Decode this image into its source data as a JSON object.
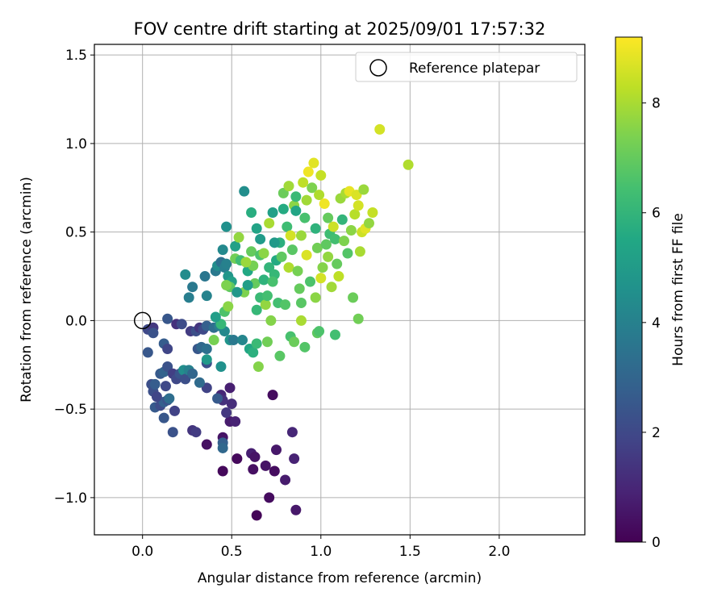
{
  "chart_data": {
    "type": "scatter",
    "title": "FOV centre drift starting at 2025/09/01 17:57:32",
    "xlabel": "Angular distance from reference (arcmin)",
    "ylabel": "Rotation from reference (arcmin)",
    "xlim": [
      -0.27,
      2.48
    ],
    "ylim": [
      -1.21,
      1.56
    ],
    "xticks": [
      "0.0",
      "0.5",
      "1.0",
      "1.5",
      "2.0"
    ],
    "yticks": [
      "−1.0",
      "−0.5",
      "0.0",
      "0.5",
      "1.0",
      "1.5"
    ],
    "grid": true,
    "legend": {
      "position": "top-right",
      "label": "Reference platepar"
    },
    "reference_point": {
      "x": 0.0,
      "y": 0.0
    },
    "colorbar": {
      "label": "Hours from first FF file",
      "colormap": "viridis",
      "range": [
        0,
        9.2
      ],
      "ticks": [
        "0",
        "2",
        "4",
        "6",
        "8"
      ]
    },
    "points": [
      {
        "x": 0.64,
        "y": -1.1,
        "t": 0.1
      },
      {
        "x": 0.71,
        "y": -1.0,
        "t": 0.3
      },
      {
        "x": 0.86,
        "y": -1.07,
        "t": 0.6
      },
      {
        "x": 0.45,
        "y": -0.85,
        "t": 0.2
      },
      {
        "x": 0.62,
        "y": -0.84,
        "t": 0.4
      },
      {
        "x": 0.69,
        "y": -0.82,
        "t": 0.5
      },
      {
        "x": 0.74,
        "y": -0.85,
        "t": 0.3
      },
      {
        "x": 0.8,
        "y": -0.9,
        "t": 0.7
      },
      {
        "x": 0.53,
        "y": -0.78,
        "t": 0.2
      },
      {
        "x": 0.61,
        "y": -0.75,
        "t": 0.8
      },
      {
        "x": 0.63,
        "y": -0.77,
        "t": 0.5
      },
      {
        "x": 0.75,
        "y": -0.73,
        "t": 0.6
      },
      {
        "x": 0.85,
        "y": -0.78,
        "t": 0.9
      },
      {
        "x": 0.84,
        "y": -0.63,
        "t": 1.0
      },
      {
        "x": 0.36,
        "y": -0.7,
        "t": 0.4
      },
      {
        "x": 0.45,
        "y": -0.66,
        "t": 0.5
      },
      {
        "x": 0.73,
        "y": -0.42,
        "t": 0.3
      },
      {
        "x": 0.49,
        "y": -0.57,
        "t": 0.7
      },
      {
        "x": 0.52,
        "y": -0.57,
        "t": 0.9
      },
      {
        "x": 0.5,
        "y": -0.47,
        "t": 1.2
      },
      {
        "x": 0.44,
        "y": -0.42,
        "t": 1.0
      },
      {
        "x": 0.49,
        "y": -0.38,
        "t": 0.8
      },
      {
        "x": 0.45,
        "y": -0.45,
        "t": 1.3
      },
      {
        "x": 0.47,
        "y": -0.52,
        "t": 1.5
      },
      {
        "x": 0.28,
        "y": -0.62,
        "t": 1.4
      },
      {
        "x": 0.3,
        "y": -0.63,
        "t": 1.6
      },
      {
        "x": 0.17,
        "y": -0.63,
        "t": 2.3
      },
      {
        "x": 0.12,
        "y": -0.55,
        "t": 2.5
      },
      {
        "x": 0.18,
        "y": -0.51,
        "t": 1.8
      },
      {
        "x": 0.07,
        "y": -0.49,
        "t": 2.6
      },
      {
        "x": 0.1,
        "y": -0.48,
        "t": 2.1
      },
      {
        "x": 0.12,
        "y": -0.46,
        "t": 2.8
      },
      {
        "x": 0.14,
        "y": -0.45,
        "t": 2.4
      },
      {
        "x": 0.15,
        "y": -0.44,
        "t": 3.3
      },
      {
        "x": 0.06,
        "y": -0.4,
        "t": 2.2
      },
      {
        "x": 0.08,
        "y": -0.43,
        "t": 1.9
      },
      {
        "x": 0.05,
        "y": -0.36,
        "t": 2.2
      },
      {
        "x": 0.07,
        "y": -0.36,
        "t": 2.7
      },
      {
        "x": 0.13,
        "y": -0.37,
        "t": 2.0
      },
      {
        "x": 0.1,
        "y": -0.3,
        "t": 2.6
      },
      {
        "x": 0.12,
        "y": -0.29,
        "t": 2.9
      },
      {
        "x": 0.14,
        "y": -0.26,
        "t": 2.3
      },
      {
        "x": 0.17,
        "y": -0.3,
        "t": 1.7
      },
      {
        "x": 0.19,
        "y": -0.33,
        "t": 2.0
      },
      {
        "x": 0.21,
        "y": -0.3,
        "t": 2.4
      },
      {
        "x": 0.23,
        "y": -0.28,
        "t": 4.5
      },
      {
        "x": 0.24,
        "y": -0.33,
        "t": 2.2
      },
      {
        "x": 0.26,
        "y": -0.28,
        "t": 4.0
      },
      {
        "x": 0.28,
        "y": -0.3,
        "t": 3.0
      },
      {
        "x": 0.36,
        "y": -0.38,
        "t": 1.8
      },
      {
        "x": 0.42,
        "y": -0.44,
        "t": 2.6
      },
      {
        "x": 0.45,
        "y": -0.69,
        "t": 2.8
      },
      {
        "x": 0.45,
        "y": -0.72,
        "t": 3.1
      },
      {
        "x": 0.32,
        "y": -0.35,
        "t": 3.2
      },
      {
        "x": 0.03,
        "y": -0.18,
        "t": 2.5
      },
      {
        "x": 0.03,
        "y": -0.05,
        "t": 2.0
      },
      {
        "x": 0.06,
        "y": -0.04,
        "t": 1.5
      },
      {
        "x": 0.06,
        "y": -0.07,
        "t": 2.3
      },
      {
        "x": 0.12,
        "y": -0.13,
        "t": 2.7
      },
      {
        "x": 0.14,
        "y": -0.16,
        "t": 1.9
      },
      {
        "x": 0.14,
        "y": 0.01,
        "t": 2.5
      },
      {
        "x": 0.19,
        "y": -0.02,
        "t": 1.3
      },
      {
        "x": 0.22,
        "y": -0.02,
        "t": 2.1
      },
      {
        "x": 0.27,
        "y": -0.06,
        "t": 1.6
      },
      {
        "x": 0.3,
        "y": -0.06,
        "t": 2.2
      },
      {
        "x": 0.32,
        "y": -0.04,
        "t": 1.4
      },
      {
        "x": 0.34,
        "y": -0.05,
        "t": 2.0
      },
      {
        "x": 0.36,
        "y": -0.03,
        "t": 2.8
      },
      {
        "x": 0.31,
        "y": -0.16,
        "t": 2.5
      },
      {
        "x": 0.33,
        "y": -0.15,
        "t": 3.1
      },
      {
        "x": 0.36,
        "y": -0.24,
        "t": 2.2
      },
      {
        "x": 0.36,
        "y": -0.22,
        "t": 4.9
      },
      {
        "x": 0.36,
        "y": -0.16,
        "t": 3.4
      },
      {
        "x": 0.44,
        "y": -0.26,
        "t": 4.6
      },
      {
        "x": 0.4,
        "y": -0.04,
        "t": 3.3
      },
      {
        "x": 0.43,
        "y": -0.03,
        "t": 3.9
      },
      {
        "x": 0.46,
        "y": -0.06,
        "t": 4.3
      },
      {
        "x": 0.49,
        "y": -0.11,
        "t": 4.7
      },
      {
        "x": 0.51,
        "y": -0.11,
        "t": 3.7
      },
      {
        "x": 0.56,
        "y": -0.11,
        "t": 4.2
      },
      {
        "x": 0.6,
        "y": -0.16,
        "t": 5.4
      },
      {
        "x": 0.62,
        "y": -0.18,
        "t": 5.8
      },
      {
        "x": 0.65,
        "y": -0.26,
        "t": 7.5
      },
      {
        "x": 0.64,
        "y": -0.13,
        "t": 6.2
      },
      {
        "x": 0.7,
        "y": -0.12,
        "t": 7.2
      },
      {
        "x": 0.77,
        "y": -0.2,
        "t": 6.8
      },
      {
        "x": 0.83,
        "y": -0.09,
        "t": 6.5
      },
      {
        "x": 0.85,
        "y": -0.12,
        "t": 7.1
      },
      {
        "x": 0.91,
        "y": -0.15,
        "t": 6.7
      },
      {
        "x": 0.98,
        "y": -0.07,
        "t": 6.9
      },
      {
        "x": 0.99,
        "y": -0.06,
        "t": 6.6
      },
      {
        "x": 1.08,
        "y": -0.08,
        "t": 6.4
      },
      {
        "x": 0.89,
        "y": 0.0,
        "t": 8.0
      },
      {
        "x": 0.26,
        "y": 0.13,
        "t": 3.9
      },
      {
        "x": 0.24,
        "y": 0.26,
        "t": 4.4
      },
      {
        "x": 0.28,
        "y": 0.19,
        "t": 3.7
      },
      {
        "x": 0.35,
        "y": 0.25,
        "t": 3.6
      },
      {
        "x": 0.36,
        "y": 0.14,
        "t": 4.1
      },
      {
        "x": 0.41,
        "y": 0.28,
        "t": 3.7
      },
      {
        "x": 0.42,
        "y": 0.31,
        "t": 4.5
      },
      {
        "x": 0.44,
        "y": 0.33,
        "t": 3.4
      },
      {
        "x": 0.46,
        "y": 0.3,
        "t": 3.9
      },
      {
        "x": 0.45,
        "y": 0.4,
        "t": 4.3
      },
      {
        "x": 0.47,
        "y": 0.32,
        "t": 4.0
      },
      {
        "x": 0.48,
        "y": 0.25,
        "t": 4.8
      },
      {
        "x": 0.5,
        "y": 0.22,
        "t": 5.2
      },
      {
        "x": 0.49,
        "y": 0.19,
        "t": 6.9
      },
      {
        "x": 0.47,
        "y": 0.2,
        "t": 7.4
      },
      {
        "x": 0.46,
        "y": 0.05,
        "t": 6.6
      },
      {
        "x": 0.48,
        "y": 0.08,
        "t": 7.6
      },
      {
        "x": 0.44,
        "y": -0.02,
        "t": 6.1
      },
      {
        "x": 0.41,
        "y": 0.02,
        "t": 5.1
      },
      {
        "x": 0.4,
        "y": -0.11,
        "t": 7.3
      },
      {
        "x": 0.47,
        "y": 0.53,
        "t": 4.6
      },
      {
        "x": 0.52,
        "y": 0.42,
        "t": 5.2
      },
      {
        "x": 0.52,
        "y": 0.35,
        "t": 7.2
      },
      {
        "x": 0.54,
        "y": 0.47,
        "t": 7.7
      },
      {
        "x": 0.55,
        "y": 0.34,
        "t": 6.3
      },
      {
        "x": 0.57,
        "y": 0.16,
        "t": 7.4
      },
      {
        "x": 0.57,
        "y": 0.73,
        "t": 4.5
      },
      {
        "x": 0.59,
        "y": 0.28,
        "t": 5.5
      },
      {
        "x": 0.61,
        "y": 0.39,
        "t": 7.0
      },
      {
        "x": 0.61,
        "y": 0.61,
        "t": 5.7
      },
      {
        "x": 0.62,
        "y": 0.31,
        "t": 7.3
      },
      {
        "x": 0.63,
        "y": 0.21,
        "t": 7.0
      },
      {
        "x": 0.64,
        "y": 0.52,
        "t": 5.3
      },
      {
        "x": 0.66,
        "y": 0.37,
        "t": 6.6
      },
      {
        "x": 0.66,
        "y": 0.13,
        "t": 6.2
      },
      {
        "x": 0.68,
        "y": 0.38,
        "t": 7.6
      },
      {
        "x": 0.68,
        "y": 0.23,
        "t": 5.9
      },
      {
        "x": 0.69,
        "y": 0.09,
        "t": 7.7
      },
      {
        "x": 0.7,
        "y": 0.14,
        "t": 6.4
      },
      {
        "x": 0.71,
        "y": 0.3,
        "t": 6.0
      },
      {
        "x": 0.71,
        "y": 0.55,
        "t": 8.0
      },
      {
        "x": 0.72,
        "y": 0.0,
        "t": 7.5
      },
      {
        "x": 0.73,
        "y": 0.61,
        "t": 5.2
      },
      {
        "x": 0.74,
        "y": 0.26,
        "t": 6.1
      },
      {
        "x": 0.75,
        "y": 0.34,
        "t": 5.6
      },
      {
        "x": 0.76,
        "y": 0.1,
        "t": 6.4
      },
      {
        "x": 0.77,
        "y": 0.44,
        "t": 5.8
      },
      {
        "x": 0.78,
        "y": 0.36,
        "t": 6.9
      },
      {
        "x": 0.79,
        "y": 0.72,
        "t": 7.1
      },
      {
        "x": 0.8,
        "y": 0.09,
        "t": 6.7
      },
      {
        "x": 0.81,
        "y": 0.53,
        "t": 6.3
      },
      {
        "x": 0.82,
        "y": 0.3,
        "t": 8.1
      },
      {
        "x": 0.82,
        "y": 0.76,
        "t": 7.9
      },
      {
        "x": 0.83,
        "y": 0.48,
        "t": 8.6
      },
      {
        "x": 0.84,
        "y": 0.4,
        "t": 6.8
      },
      {
        "x": 0.85,
        "y": 0.65,
        "t": 7.6
      },
      {
        "x": 0.86,
        "y": 0.7,
        "t": 6.2
      },
      {
        "x": 0.87,
        "y": 0.28,
        "t": 7.3
      },
      {
        "x": 0.88,
        "y": 0.18,
        "t": 7.0
      },
      {
        "x": 0.89,
        "y": 0.48,
        "t": 7.8
      },
      {
        "x": 0.9,
        "y": 0.78,
        "t": 8.3
      },
      {
        "x": 0.91,
        "y": 0.58,
        "t": 6.5
      },
      {
        "x": 0.92,
        "y": 0.37,
        "t": 8.7
      },
      {
        "x": 0.93,
        "y": 0.84,
        "t": 9.0
      },
      {
        "x": 0.94,
        "y": 0.22,
        "t": 6.6
      },
      {
        "x": 0.95,
        "y": 0.75,
        "t": 7.4
      },
      {
        "x": 0.96,
        "y": 0.89,
        "t": 8.8
      },
      {
        "x": 0.97,
        "y": 0.52,
        "t": 5.9
      },
      {
        "x": 0.98,
        "y": 0.41,
        "t": 7.2
      },
      {
        "x": 0.99,
        "y": 0.71,
        "t": 8.1
      },
      {
        "x": 1.0,
        "y": 0.82,
        "t": 8.4
      },
      {
        "x": 1.0,
        "y": 0.24,
        "t": 8.6
      },
      {
        "x": 1.01,
        "y": 0.3,
        "t": 7.5
      },
      {
        "x": 1.02,
        "y": 0.66,
        "t": 9.0
      },
      {
        "x": 1.03,
        "y": 0.43,
        "t": 6.9
      },
      {
        "x": 1.04,
        "y": 0.36,
        "t": 7.7
      },
      {
        "x": 1.05,
        "y": 0.49,
        "t": 6.3
      },
      {
        "x": 1.06,
        "y": 0.19,
        "t": 7.9
      },
      {
        "x": 1.07,
        "y": 0.53,
        "t": 8.5
      },
      {
        "x": 1.08,
        "y": 0.46,
        "t": 6.4
      },
      {
        "x": 1.09,
        "y": 0.32,
        "t": 7.0
      },
      {
        "x": 1.1,
        "y": 0.25,
        "t": 8.3
      },
      {
        "x": 1.11,
        "y": 0.69,
        "t": 7.8
      },
      {
        "x": 1.12,
        "y": 0.57,
        "t": 6.0
      },
      {
        "x": 1.13,
        "y": 0.45,
        "t": 7.4
      },
      {
        "x": 1.14,
        "y": 0.72,
        "t": 8.0
      },
      {
        "x": 1.15,
        "y": 0.38,
        "t": 6.7
      },
      {
        "x": 1.16,
        "y": 0.73,
        "t": 8.9
      },
      {
        "x": 1.17,
        "y": 0.51,
        "t": 7.6
      },
      {
        "x": 1.18,
        "y": 0.13,
        "t": 7.1
      },
      {
        "x": 1.19,
        "y": 0.6,
        "t": 8.2
      },
      {
        "x": 1.2,
        "y": 0.71,
        "t": 8.7
      },
      {
        "x": 1.21,
        "y": 0.65,
        "t": 8.6
      },
      {
        "x": 1.22,
        "y": 0.39,
        "t": 8.0
      },
      {
        "x": 1.23,
        "y": 0.5,
        "t": 8.5
      },
      {
        "x": 1.24,
        "y": 0.74,
        "t": 7.8
      },
      {
        "x": 1.25,
        "y": 0.52,
        "t": 8.8
      },
      {
        "x": 1.27,
        "y": 0.55,
        "t": 7.7
      },
      {
        "x": 1.29,
        "y": 0.61,
        "t": 8.4
      },
      {
        "x": 1.21,
        "y": 0.01,
        "t": 7.2
      },
      {
        "x": 1.33,
        "y": 1.08,
        "t": 8.6
      },
      {
        "x": 1.49,
        "y": 0.88,
        "t": 8.1
      },
      {
        "x": 0.86,
        "y": 0.62,
        "t": 5.4
      },
      {
        "x": 0.74,
        "y": 0.44,
        "t": 4.9
      },
      {
        "x": 0.66,
        "y": 0.46,
        "t": 5.0
      },
      {
        "x": 0.59,
        "y": 0.2,
        "t": 5.1
      },
      {
        "x": 0.53,
        "y": 0.16,
        "t": 4.8
      },
      {
        "x": 0.79,
        "y": 0.63,
        "t": 5.6
      },
      {
        "x": 0.92,
        "y": 0.68,
        "t": 7.9
      },
      {
        "x": 1.04,
        "y": 0.58,
        "t": 7.0
      },
      {
        "x": 0.97,
        "y": 0.13,
        "t": 7.6
      },
      {
        "x": 0.89,
        "y": 0.1,
        "t": 6.8
      },
      {
        "x": 0.73,
        "y": 0.22,
        "t": 6.5
      },
      {
        "x": 0.64,
        "y": 0.06,
        "t": 6.1
      },
      {
        "x": 0.58,
        "y": 0.33,
        "t": 7.8
      }
    ]
  }
}
